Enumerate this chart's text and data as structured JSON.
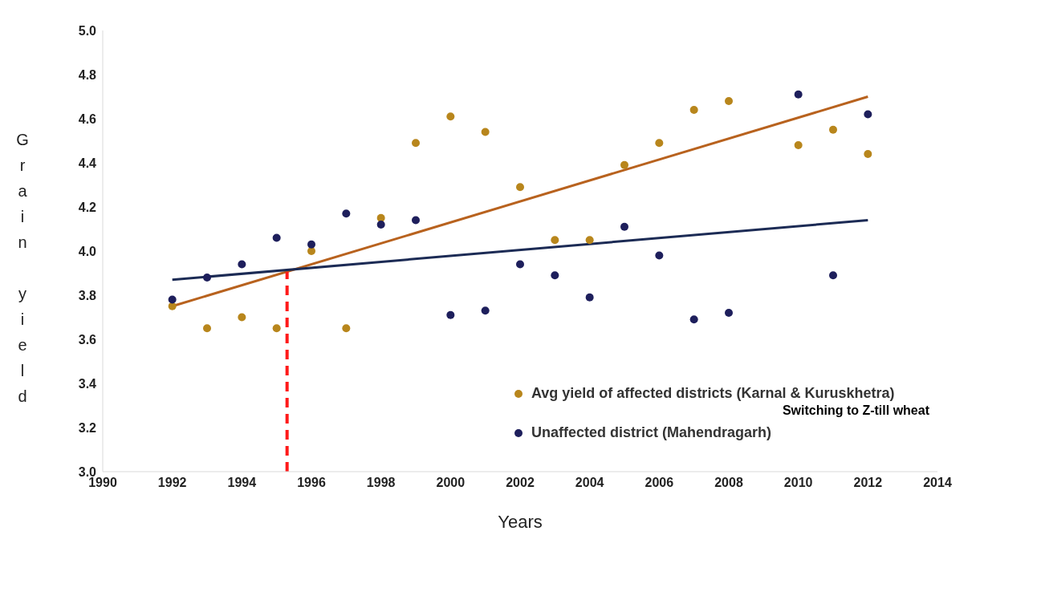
{
  "chart_data": {
    "type": "scatter",
    "xlabel": "Years",
    "ylabel": "Grain yield",
    "xlim": [
      1990,
      2014
    ],
    "xticks": [
      1990,
      1992,
      1994,
      1996,
      1998,
      2000,
      2002,
      2004,
      2006,
      2008,
      2010,
      2012,
      2014
    ],
    "ylim": [
      3.0,
      5.0
    ],
    "yticks": [
      {
        "value": 3.0,
        "label": "3.0"
      },
      {
        "value": 3.2,
        "label": "3.2"
      },
      {
        "value": 3.4,
        "label": "3.4"
      },
      {
        "value": 3.6,
        "label": "3.6"
      },
      {
        "value": 3.8,
        "label": "3.8"
      },
      {
        "value": 4.0,
        "label": "4.0"
      },
      {
        "value": 4.2,
        "label": "4.2"
      },
      {
        "value": 4.4,
        "label": "4.4"
      },
      {
        "value": 4.6,
        "label": "4.6"
      },
      {
        "value": 4.8,
        "label": "4.8"
      },
      {
        "value": 5.0,
        "label": "5.0"
      }
    ],
    "legend": "bottom right",
    "marker": "circle",
    "series": [
      {
        "name": "Avg yield of affected districts (Karnal & Kuruskhetra)",
        "color": "#b8861c",
        "x": [
          1992,
          1993,
          1994,
          1995,
          1996,
          1997,
          1998,
          1999,
          2000,
          2001,
          2002,
          2003,
          2004,
          2005,
          2006,
          2007,
          2008,
          2010,
          2011,
          2012
        ],
        "values": [
          3.75,
          3.65,
          3.7,
          3.65,
          4.0,
          3.65,
          4.15,
          4.49,
          4.61,
          4.54,
          4.29,
          4.05,
          4.05,
          4.39,
          4.49,
          4.64,
          4.68,
          4.48,
          4.55,
          4.44
        ]
      },
      {
        "name": "Unaffected district (Mahendragarh)",
        "color": "#1e1f5c",
        "x": [
          1992,
          1993,
          1994,
          1995,
          1996,
          1997,
          1998,
          1999,
          2000,
          2001,
          2002,
          2003,
          2004,
          2005,
          2006,
          2007,
          2008,
          2010,
          2011,
          2012
        ],
        "values": [
          3.78,
          3.88,
          3.94,
          4.06,
          4.03,
          4.17,
          4.12,
          4.14,
          3.71,
          3.73,
          3.94,
          3.89,
          3.79,
          4.11,
          3.98,
          3.69,
          3.72,
          4.71,
          3.89,
          4.62
        ]
      },
      {
        "type": "line",
        "color": "#b8621e",
        "x": [
          1992,
          2012
        ],
        "values": [
          3.75,
          4.7
        ],
        "marker": "none"
      },
      {
        "type": "line",
        "color": "#1c2b55",
        "x": [
          1992,
          2012
        ],
        "values": [
          3.87,
          4.14
        ],
        "marker": "none"
      }
    ],
    "ref_lines": [
      {
        "axis": "x",
        "value": 1995.3,
        "color": "#ff1a1a",
        "line_style": "dashed"
      }
    ],
    "annotations": [
      "Switching to Z-till wheat"
    ]
  }
}
